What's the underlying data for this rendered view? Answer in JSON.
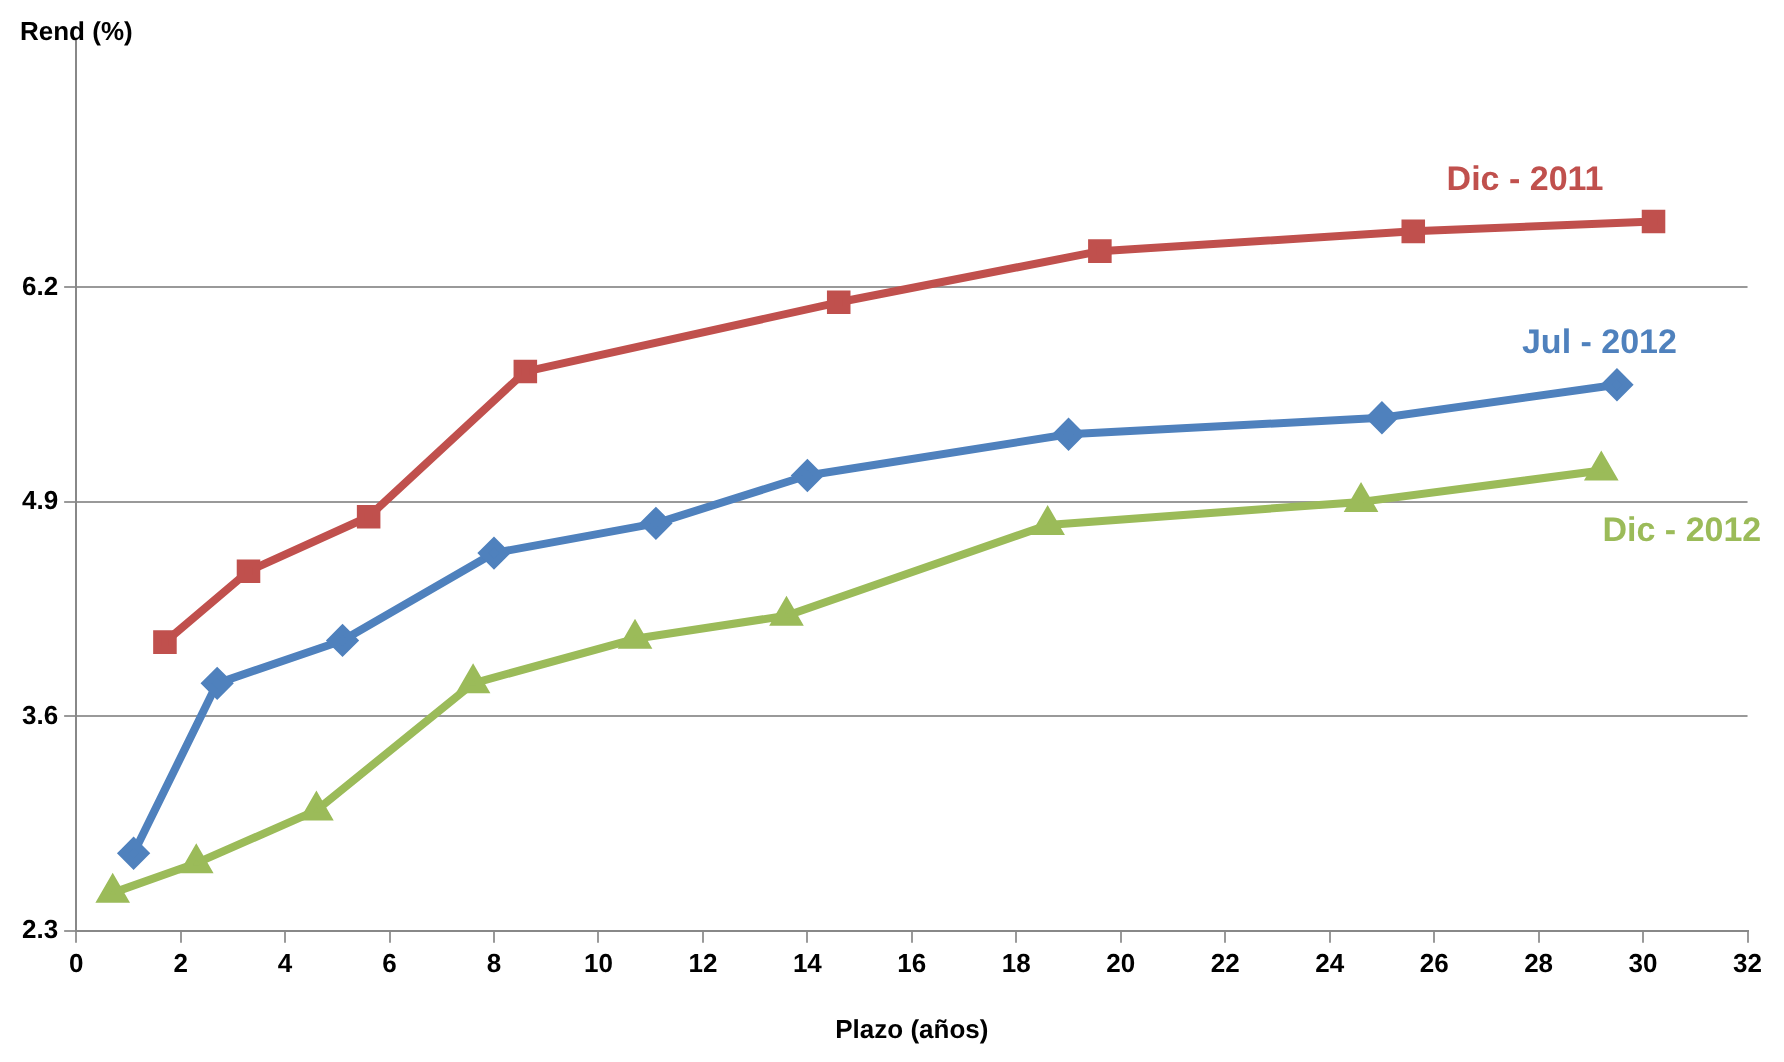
{
  "chart_data": {
    "type": "line",
    "xlabel": "Plazo (años)",
    "ylabel": "Rend (%)",
    "xlim": [
      0,
      32
    ],
    "xticks": [
      0,
      2,
      4,
      6,
      8,
      10,
      12,
      14,
      16,
      18,
      20,
      22,
      24,
      26,
      28,
      30,
      32
    ],
    "ylim": [
      2.3,
      7.7
    ],
    "yticks": [
      2.3,
      3.6,
      4.9,
      6.2
    ],
    "grid": "y",
    "legend": false,
    "line_style": "solid",
    "series": [
      {
        "name": "Dic - 2011",
        "color": "#c0504d",
        "marker": "square",
        "x": [
          1.7,
          3.3,
          5.6,
          8.6,
          14.6,
          19.6,
          25.6,
          30.2
        ],
        "values": [
          4.05,
          4.48,
          4.81,
          5.69,
          6.11,
          6.42,
          6.54,
          6.6
        ]
      },
      {
        "name": "Jul - 2012",
        "color": "#4f81bd",
        "marker": "diamond",
        "x": [
          1.1,
          2.7,
          5.1,
          8.0,
          11.1,
          14.0,
          19.0,
          25.0,
          29.5
        ],
        "values": [
          2.77,
          3.8,
          4.06,
          4.59,
          4.77,
          5.06,
          5.31,
          5.41,
          5.61
        ]
      },
      {
        "name": "Dic - 2012",
        "color": "#9bbb59",
        "marker": "triangle",
        "x": [
          0.7,
          2.3,
          4.6,
          7.6,
          10.7,
          13.6,
          18.6,
          24.6,
          29.2
        ],
        "values": [
          2.53,
          2.71,
          3.03,
          3.8,
          4.07,
          4.21,
          4.76,
          4.9,
          5.09
        ]
      }
    ]
  }
}
